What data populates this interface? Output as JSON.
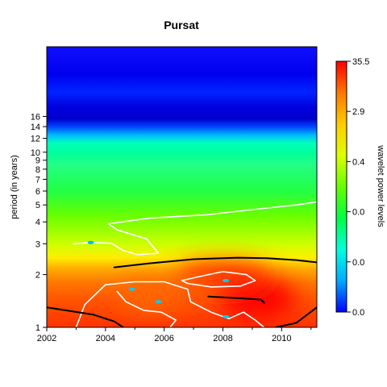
{
  "chart_data": {
    "type": "heatmap",
    "title": "Pursat",
    "xlabel": "",
    "ylabel": "period (in years)",
    "xlim": [
      2002,
      2011.2
    ],
    "ylim": [
      1,
      40
    ],
    "y_scale": "log2",
    "x_ticks": [
      2002,
      2004,
      2006,
      2008,
      2010
    ],
    "y_ticks": [
      1,
      2,
      3,
      4,
      5,
      6,
      7,
      8,
      9,
      10,
      12,
      14,
      16
    ],
    "colorbar": {
      "label": "wavelet power levels",
      "tick_labels": [
        "0.0",
        "0.0",
        "0.0",
        "0.4",
        "2.9",
        "35.5"
      ],
      "colors": [
        "#0000ff",
        "#00aaff",
        "#00ffdd",
        "#00ff44",
        "#66ff00",
        "#ddff00",
        "#ffcc00",
        "#ff7700",
        "#ff0000"
      ]
    },
    "bands": [
      {
        "period": 40,
        "color": "#1010ff"
      },
      {
        "period": 28,
        "color": "#0000ee"
      },
      {
        "period": 22,
        "color": "#0022ff"
      },
      {
        "period": 18,
        "color": "#0000dd"
      },
      {
        "period": 15.5,
        "color": "#0000cc"
      },
      {
        "period": 14,
        "color": "#0044ff"
      },
      {
        "period": 12.5,
        "color": "#00bbff"
      },
      {
        "period": 11.3,
        "color": "#00ffbb"
      },
      {
        "period": 9.8,
        "color": "#00ff99"
      },
      {
        "period": 8.6,
        "color": "#22ff88"
      },
      {
        "period": 7.2,
        "color": "#22ff66"
      },
      {
        "period": 6,
        "color": "#22ff44"
      },
      {
        "period": 5.1,
        "color": "#44ff22"
      },
      {
        "period": 4.4,
        "color": "#66ff00"
      },
      {
        "period": 3.6,
        "color": "#99ff00"
      },
      {
        "period": 3.0,
        "color": "#ccff00"
      },
      {
        "period": 2.5,
        "color": "#ffee00"
      },
      {
        "period": 2.15,
        "color": "#ffaa00"
      },
      {
        "period": 1.8,
        "color": "#ff7700"
      },
      {
        "period": 1.45,
        "color": "#ff5500"
      },
      {
        "period": 1.0,
        "color": "#ff3300"
      }
    ],
    "hot_regions": [
      {
        "year": 2009.2,
        "period": 1.45,
        "rx": 2.6,
        "ry": 0.38,
        "color": "#ff0000"
      },
      {
        "year": 2008.0,
        "period": 2.0,
        "rx": 3.2,
        "ry": 0.25,
        "color": "#ff3300"
      },
      {
        "year": 2005.5,
        "period": 1.5,
        "rx": 2.2,
        "ry": 0.3,
        "color": "#ff6600"
      }
    ],
    "significance_contours": [
      {
        "name": "white-contour-upper",
        "color": "#ffffff",
        "points": [
          [
            2002.9,
            3.0
          ],
          [
            2003.5,
            3.05
          ],
          [
            2004.2,
            3.02
          ],
          [
            2004.6,
            2.75
          ],
          [
            2005.1,
            2.6
          ],
          [
            2005.8,
            2.65
          ],
          [
            2005.4,
            3.2
          ],
          [
            2004.4,
            3.6
          ],
          [
            2004.1,
            3.9
          ],
          [
            2005.5,
            4.2
          ],
          [
            2007.5,
            4.4
          ],
          [
            2009,
            4.7
          ],
          [
            2010.5,
            5.0
          ],
          [
            2011.2,
            5.2
          ]
        ]
      },
      {
        "name": "white-contour-lower-left",
        "color": "#ffffff",
        "points": [
          [
            2003,
            1.0
          ],
          [
            2003.3,
            1.35
          ],
          [
            2004,
            1.75
          ],
          [
            2005,
            1.82
          ],
          [
            2006,
            1.82
          ],
          [
            2006.8,
            1.65
          ],
          [
            2006.9,
            1.4
          ],
          [
            2007.6,
            1.22
          ],
          [
            2008.2,
            1.12
          ],
          [
            2008.7,
            1.22
          ],
          [
            2009.1,
            1.1
          ],
          [
            2009.4,
            1.0
          ]
        ]
      },
      {
        "name": "white-contour-lower-inner",
        "color": "#ffffff",
        "points": [
          [
            2004.4,
            1.6
          ],
          [
            2004.7,
            1.4
          ],
          [
            2005.3,
            1.25
          ],
          [
            2005.9,
            1.22
          ],
          [
            2006.4,
            1.1
          ],
          [
            2006.2,
            1.0
          ]
        ]
      },
      {
        "name": "white-contour-right-loop",
        "color": "#ffffff",
        "points": [
          [
            2006.6,
            1.85
          ],
          [
            2007.2,
            1.95
          ],
          [
            2008.0,
            2.08
          ],
          [
            2008.8,
            2.0
          ],
          [
            2009.1,
            1.85
          ],
          [
            2008.6,
            1.72
          ],
          [
            2007.6,
            1.7
          ],
          [
            2006.8,
            1.78
          ],
          [
            2006.6,
            1.85
          ]
        ]
      },
      {
        "name": "black-cone-upper",
        "color": "#000000",
        "points": [
          [
            2004.3,
            2.2
          ],
          [
            2005.5,
            2.32
          ],
          [
            2007,
            2.45
          ],
          [
            2008.5,
            2.5
          ],
          [
            2009.5,
            2.48
          ],
          [
            2010.5,
            2.42
          ],
          [
            2011.2,
            2.35
          ]
        ]
      },
      {
        "name": "black-cone-left",
        "color": "#000000",
        "points": [
          [
            2002,
            1.3
          ],
          [
            2002.8,
            1.24
          ],
          [
            2003.6,
            1.18
          ],
          [
            2004.3,
            1.08
          ],
          [
            2004.6,
            1.0
          ]
        ]
      },
      {
        "name": "black-cone-right",
        "color": "#000000",
        "points": [
          [
            2007.5,
            1.5
          ],
          [
            2008.5,
            1.47
          ],
          [
            2009.3,
            1.44
          ],
          [
            2009.4,
            1.38
          ]
        ]
      },
      {
        "name": "black-cone-right-bottom",
        "color": "#000000",
        "points": [
          [
            2009.8,
            1.0
          ],
          [
            2010.5,
            1.06
          ],
          [
            2011.2,
            1.3
          ]
        ]
      }
    ],
    "peaks": [
      {
        "year": 2003.5,
        "period": 3.05,
        "color": "#00bbff"
      },
      {
        "year": 2004.9,
        "period": 1.65,
        "color": "#00ccff"
      },
      {
        "year": 2005.8,
        "period": 1.4,
        "color": "#00ccff"
      },
      {
        "year": 2008.1,
        "period": 1.85,
        "color": "#00ccff"
      },
      {
        "year": 2008.1,
        "period": 1.15,
        "color": "#00ccff"
      }
    ],
    "grid": false,
    "legend": "colorbar-right"
  }
}
